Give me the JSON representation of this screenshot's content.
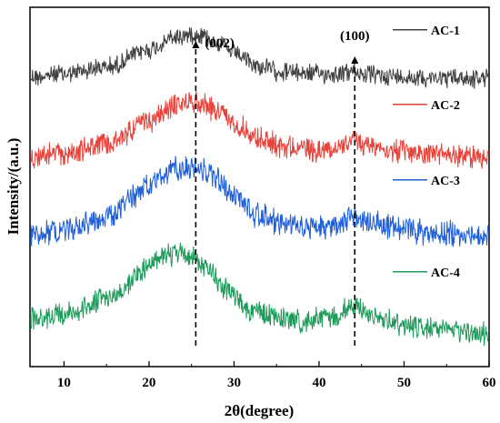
{
  "chart_data": {
    "type": "line",
    "title": "",
    "xlabel": "2θ(degree)",
    "ylabel": "Intensity/(a.u.)",
    "xlim": [
      6,
      60
    ],
    "xticks": [
      10,
      20,
      30,
      40,
      50,
      60
    ],
    "xtick_labels": [
      "10",
      "20",
      "30",
      "40",
      "50",
      "60"
    ],
    "y_tick_labels_shown": false,
    "grid": false,
    "legend_placement": "right, next to each trace",
    "annotations": [
      {
        "label": "(002)",
        "x": 25.5,
        "style": "dashed vertical arrow"
      },
      {
        "label": "(100)",
        "x": 44.2,
        "style": "dashed vertical arrow"
      }
    ],
    "series": [
      {
        "name": "AC-1",
        "color": "#404040",
        "x": [
          6,
          10,
          15,
          20,
          23,
          25,
          26,
          28,
          30,
          33,
          36,
          40,
          42,
          44,
          46,
          50,
          55,
          60
        ],
        "values": [
          0.35,
          0.38,
          0.45,
          0.62,
          0.74,
          0.78,
          0.77,
          0.7,
          0.58,
          0.45,
          0.4,
          0.38,
          0.38,
          0.4,
          0.37,
          0.35,
          0.34,
          0.33
        ]
      },
      {
        "name": "AC-2",
        "color": "#e8423a",
        "x": [
          6,
          10,
          15,
          20,
          23,
          25,
          26,
          28,
          30,
          33,
          36,
          40,
          42,
          44,
          46,
          50,
          55,
          60
        ],
        "values": [
          0.3,
          0.33,
          0.42,
          0.65,
          0.8,
          0.86,
          0.84,
          0.76,
          0.63,
          0.48,
          0.4,
          0.36,
          0.38,
          0.45,
          0.4,
          0.34,
          0.31,
          0.29
        ]
      },
      {
        "name": "AC-3",
        "color": "#1f5fd8",
        "x": [
          6,
          10,
          15,
          20,
          23,
          25,
          26,
          28,
          30,
          33,
          36,
          40,
          42,
          44,
          46,
          50,
          55,
          60
        ],
        "values": [
          0.28,
          0.32,
          0.45,
          0.75,
          0.92,
          0.96,
          0.93,
          0.82,
          0.66,
          0.47,
          0.37,
          0.33,
          0.37,
          0.46,
          0.4,
          0.32,
          0.28,
          0.25
        ]
      },
      {
        "name": "AC-4",
        "color": "#1e9a5a",
        "x": [
          6,
          10,
          15,
          20,
          22,
          24,
          25,
          27,
          29,
          32,
          35,
          38,
          41,
          44,
          47,
          50,
          55,
          60
        ],
        "values": [
          0.28,
          0.33,
          0.5,
          0.8,
          0.92,
          0.95,
          0.92,
          0.78,
          0.6,
          0.4,
          0.3,
          0.26,
          0.3,
          0.4,
          0.3,
          0.23,
          0.18,
          0.15
        ]
      }
    ]
  }
}
